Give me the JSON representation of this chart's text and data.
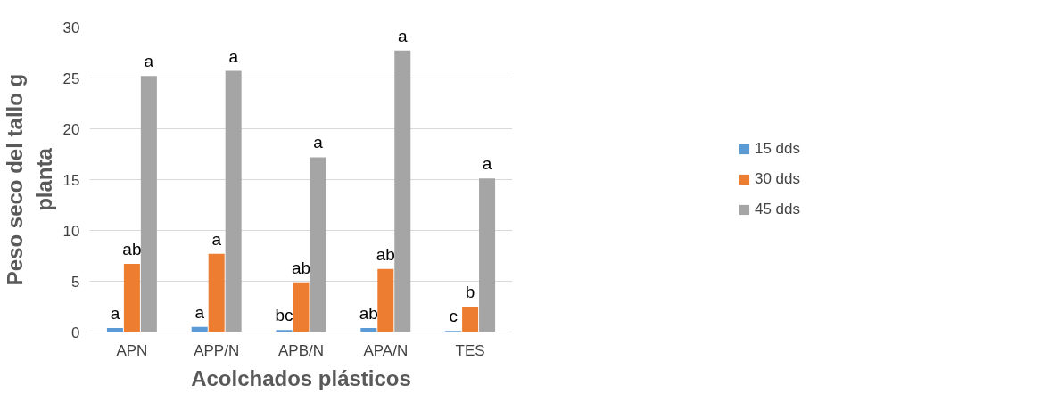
{
  "chart_data": {
    "type": "bar",
    "xlabel": "Acolchados plásticos",
    "ylabel": "Peso seco del tallo g\nplanta",
    "categories": [
      "APN",
      "APP/N",
      "APB/N",
      "APA/N",
      "TES"
    ],
    "series": [
      {
        "name": "15 dds",
        "color": "#5b9bd5",
        "values": [
          0.4,
          0.5,
          0.2,
          0.4,
          0.1
        ],
        "value_labels": [
          "a",
          "a",
          "bc",
          "ab",
          "c"
        ]
      },
      {
        "name": "30 dds",
        "color": "#ed7d31",
        "values": [
          6.7,
          7.7,
          4.9,
          6.2,
          2.5
        ],
        "value_labels": [
          "ab",
          "a",
          "ab",
          "ab",
          "b"
        ]
      },
      {
        "name": "45 dds",
        "color": "#a5a5a5",
        "values": [
          25.2,
          25.7,
          17.2,
          27.7,
          15.1
        ],
        "value_labels": [
          "a",
          "a",
          "a",
          "a",
          "a"
        ]
      }
    ],
    "ylim": [
      0,
      30
    ],
    "yticks": [
      0,
      5,
      10,
      15,
      20,
      25,
      30
    ],
    "grid": "y",
    "legend": "right"
  }
}
